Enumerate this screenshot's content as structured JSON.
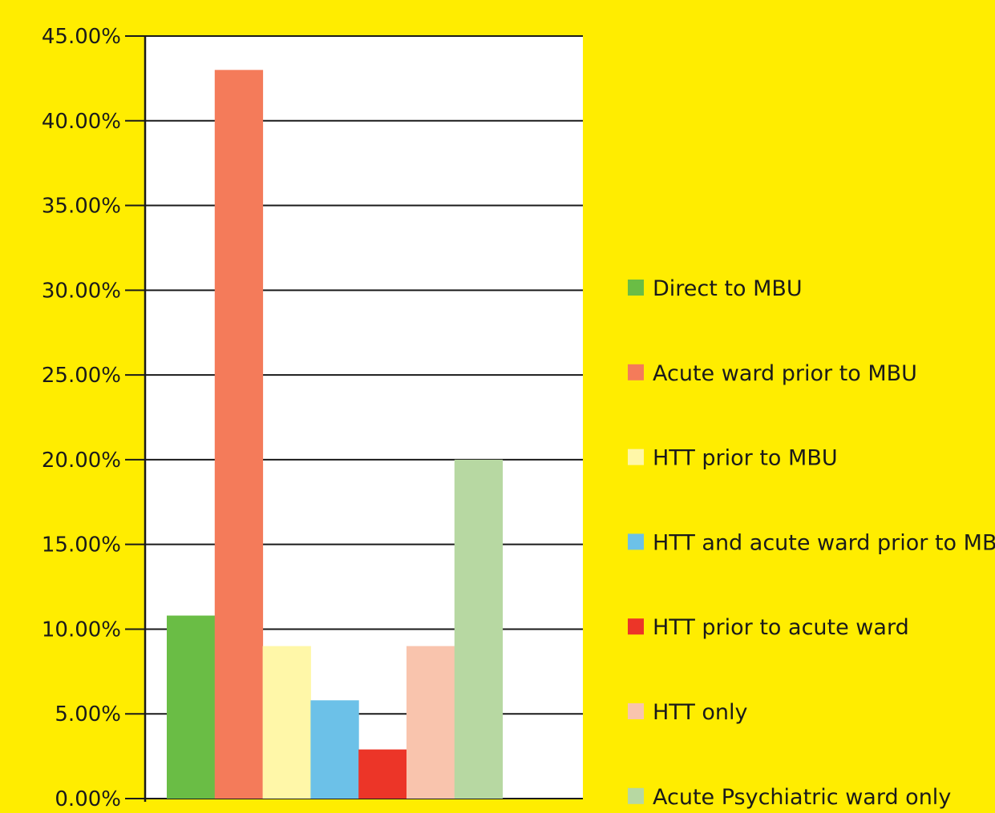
{
  "colors": {
    "background": "#FFED00",
    "plot_area": "#FFFFFF",
    "gridline": "#1A1A1A",
    "text": "#1A1A1A"
  },
  "chart_data": {
    "type": "bar",
    "title": "",
    "xlabel": "",
    "ylabel": "",
    "ylim": [
      0,
      0.45
    ],
    "y_ticks": [
      0,
      0.05,
      0.1,
      0.15,
      0.2,
      0.25,
      0.3,
      0.35,
      0.4,
      0.45
    ],
    "y_tick_labels": [
      "0.00%",
      "5.00%",
      "10.00%",
      "15.00%",
      "20.00%",
      "25.00%",
      "30.00%",
      "35.00%",
      "40.00%",
      "45.00%"
    ],
    "grid": true,
    "legend_position": "right",
    "series": [
      {
        "name": "Direct to MBU",
        "value": 0.108,
        "color": "#6ABD45"
      },
      {
        "name": "Acute ward prior to MBU",
        "value": 0.43,
        "color": "#F47B5A"
      },
      {
        "name": "HTT prior to MBU",
        "value": 0.09,
        "color": "#FFF7A8"
      },
      {
        "name": "HTT and acute ward prior to MBU",
        "value": 0.058,
        "color": "#6CC1E8"
      },
      {
        "name": "HTT prior to acute ward",
        "value": 0.029,
        "color": "#EC3528"
      },
      {
        "name": "HTT only",
        "value": 0.09,
        "color": "#F9C4AD"
      },
      {
        "name": "Acute Psychiatric ward only",
        "value": 0.2,
        "color": "#B7D8A2"
      }
    ]
  }
}
